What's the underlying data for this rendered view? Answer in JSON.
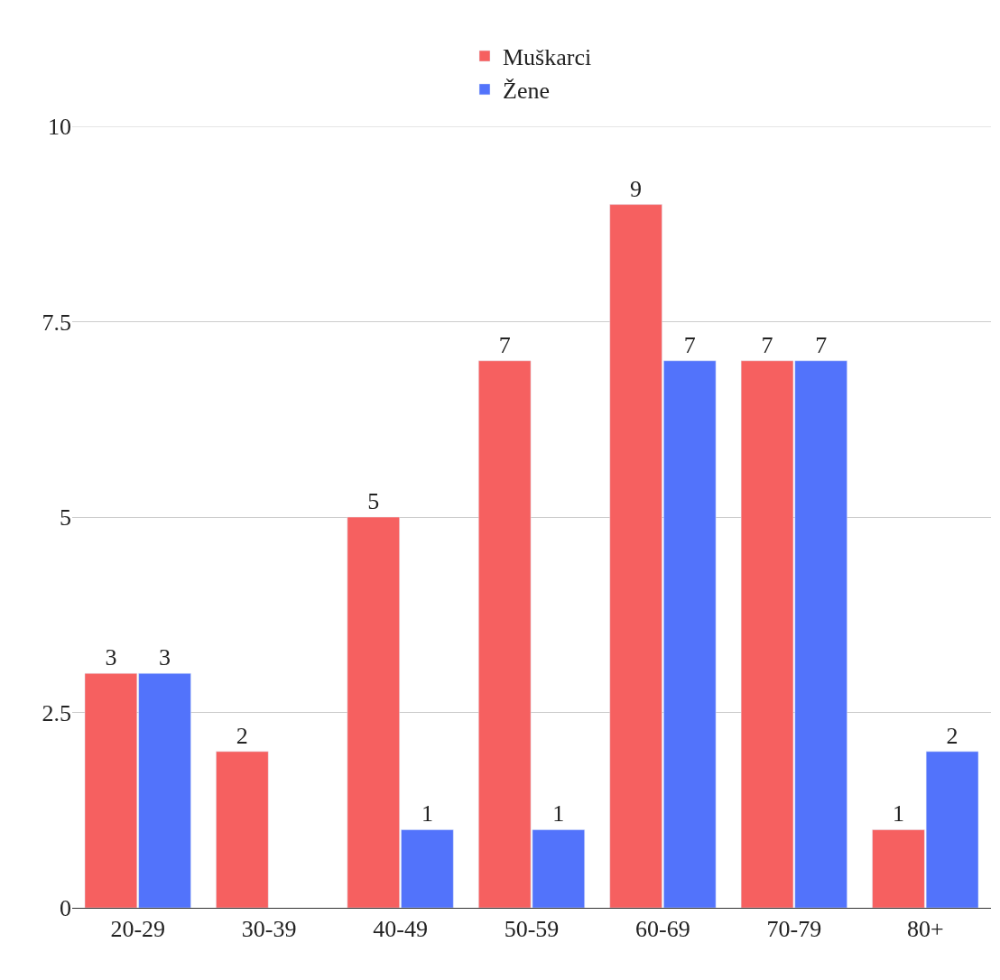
{
  "chart_data": {
    "type": "bar",
    "categories": [
      "20-29",
      "30-39",
      "40-49",
      "50-59",
      "60-69",
      "70-79",
      "80+"
    ],
    "series": [
      {
        "name": "Muškarci",
        "color": "#f66060",
        "values": [
          3,
          2,
          5,
          7,
          9,
          7,
          1
        ],
        "value_labels": [
          "3",
          "2",
          "5",
          "7",
          "9",
          "7",
          "1"
        ]
      },
      {
        "name": "Žene",
        "color": "#5273fb",
        "values": [
          3,
          null,
          1,
          1,
          7,
          7,
          2
        ],
        "value_labels": [
          "3",
          null,
          "1",
          "1",
          "7",
          "7",
          "2"
        ]
      }
    ],
    "ylim": [
      0,
      10
    ],
    "yticks": [
      0,
      2.5,
      5,
      7.5,
      10
    ],
    "grid": "y",
    "legend": "top"
  }
}
